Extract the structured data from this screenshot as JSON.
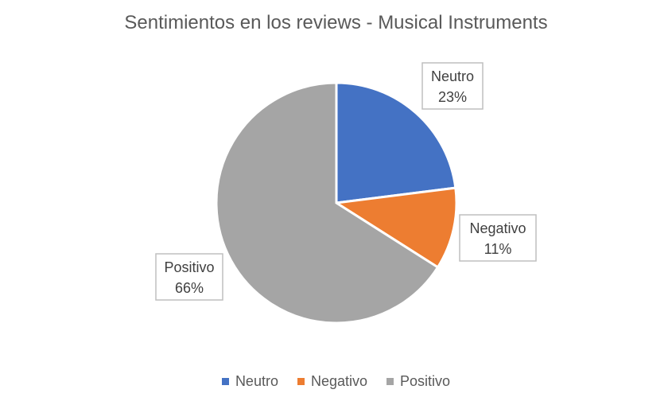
{
  "chart_data": {
    "type": "pie",
    "title": "Sentimientos en los reviews - Musical Instruments",
    "categories": [
      "Neutro",
      "Negativo",
      "Positivo"
    ],
    "values": [
      23,
      11,
      66
    ],
    "labels": [
      {
        "name": "Neutro",
        "percent": "23%"
      },
      {
        "name": "Negativo",
        "percent": "11%"
      },
      {
        "name": "Positivo",
        "percent": "66%"
      }
    ],
    "colors": [
      "#4472C4",
      "#ED7D31",
      "#A5A5A5"
    ],
    "legend_position": "bottom"
  }
}
